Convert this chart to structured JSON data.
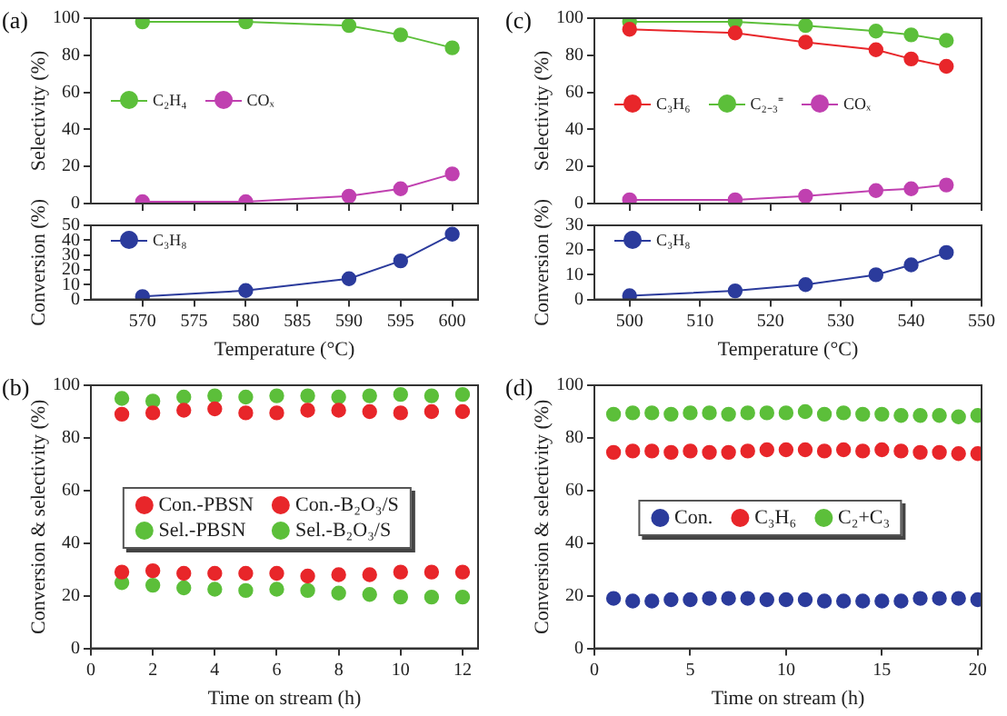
{
  "chart_data": [
    {
      "type": "line",
      "title": "(a)",
      "ylabel": "Selectivity (%)",
      "x": [
        570,
        580,
        590,
        595,
        600
      ],
      "xlim": [
        565,
        602.5
      ],
      "xticks": [
        570,
        575,
        580,
        585,
        590,
        595,
        600
      ],
      "ylim": [
        0,
        100
      ],
      "yticks": [
        0,
        20,
        40,
        60,
        80,
        100
      ],
      "tick_labels": "y",
      "marker": "circle",
      "legend": "left",
      "grid": false,
      "series": [
        {
          "name": "C₂H₄",
          "color": "#5cbf3a",
          "values": [
            98,
            98,
            96,
            91,
            84
          ]
        },
        {
          "name": "COₓ",
          "color": "#c040b0",
          "values": [
            1,
            1,
            4,
            8,
            16
          ]
        }
      ]
    },
    {
      "type": "line",
      "ylabel": "Conversion (%)",
      "xlabel": "Temperature (°C)",
      "x": [
        570,
        580,
        590,
        595,
        600
      ],
      "xlim": [
        565,
        602.5
      ],
      "xticks": [
        570,
        575,
        580,
        585,
        590,
        595,
        600
      ],
      "ylim": [
        0,
        50
      ],
      "yticks": [
        0,
        10,
        20,
        30,
        40,
        50
      ],
      "marker": "circle",
      "legend": "top left",
      "grid": false,
      "series": [
        {
          "name": "C₃H₈",
          "color": "#2b3b9c",
          "values": [
            2,
            6,
            14,
            26,
            44
          ]
        }
      ]
    },
    {
      "type": "line",
      "title": "(c)",
      "ylabel": "Selectivity (%)",
      "x": [
        500,
        515,
        525,
        535,
        540,
        545
      ],
      "xlim": [
        495,
        550
      ],
      "xticks": [
        500,
        510,
        520,
        530,
        540,
        550
      ],
      "ylim": [
        0,
        100
      ],
      "yticks": [
        0,
        20,
        40,
        60,
        80,
        100
      ],
      "tick_labels": "y",
      "marker": "circle",
      "legend": "left",
      "grid": false,
      "series": [
        {
          "name": "C₃H₆",
          "color": "#e8262a",
          "values": [
            94,
            92,
            87,
            83,
            78,
            74
          ]
        },
        {
          "name": "C₂₋₃⁼",
          "color": "#5cbf3a",
          "values": [
            98,
            98,
            96,
            93,
            91,
            88
          ]
        },
        {
          "name": "COₓ",
          "color": "#c040b0",
          "values": [
            2,
            2,
            4,
            7,
            8,
            10
          ]
        }
      ]
    },
    {
      "type": "line",
      "ylabel": "Conversion (%)",
      "xlabel": "Temperature (°C)",
      "x": [
        500,
        515,
        525,
        535,
        540,
        545
      ],
      "xlim": [
        495,
        550
      ],
      "xticks": [
        500,
        510,
        520,
        530,
        540,
        550
      ],
      "ylim": [
        0,
        30
      ],
      "yticks": [
        0,
        10,
        20,
        30
      ],
      "marker": "circle",
      "legend": "top left",
      "grid": false,
      "series": [
        {
          "name": "C₃H₈",
          "color": "#2b3b9c",
          "values": [
            1.5,
            3.5,
            6,
            10,
            14,
            19
          ]
        }
      ]
    },
    {
      "type": "scatter",
      "title": "(b)",
      "xlabel": "Time on stream (h)",
      "ylabel": "Conversion & selectivity (%)",
      "x": [
        1,
        2,
        3,
        4,
        5,
        6,
        7,
        8,
        9,
        10,
        11,
        12
      ],
      "xlim": [
        0,
        12.5
      ],
      "xticks": [
        0,
        2,
        4,
        6,
        8,
        10,
        12
      ],
      "ylim": [
        0,
        100
      ],
      "yticks": [
        0,
        20,
        40,
        60,
        80,
        100
      ],
      "marker": "circle",
      "legend": "center",
      "grid": false,
      "series": [
        {
          "name": "Con.-PBSN",
          "color": "#e8262a",
          "values": [
            29,
            29.5,
            28.5,
            28.5,
            28.5,
            28.5,
            27.5,
            28,
            28,
            29,
            29,
            29
          ]
        },
        {
          "name": "Con.-B₂O₃/S",
          "color": "#e8262a",
          "values": [
            89,
            89.5,
            90.5,
            91,
            89.5,
            89.5,
            90.5,
            90.5,
            90,
            89.5,
            90,
            90
          ]
        },
        {
          "name": "Sel.-PBSN",
          "color": "#5cbf3a",
          "values": [
            25,
            24,
            23,
            22.5,
            22,
            22.5,
            22,
            21,
            20.5,
            19.5,
            19.5,
            19.5
          ]
        },
        {
          "name": "Sel.-B₂O₃/S",
          "color": "#5cbf3a",
          "values": [
            95,
            94,
            95.5,
            96,
            95.5,
            96,
            96,
            95.5,
            96,
            96.5,
            96,
            96.5
          ]
        }
      ]
    },
    {
      "type": "scatter",
      "title": "(d)",
      "xlabel": "Time on stream (h)",
      "ylabel": "Conversion & selectivity (%)",
      "x": [
        1,
        2,
        3,
        4,
        5,
        6,
        7,
        8,
        9,
        10,
        11,
        12,
        13,
        14,
        15,
        16,
        17,
        18,
        19,
        20
      ],
      "xlim": [
        0,
        20.2
      ],
      "xticks": [
        0,
        5,
        10,
        15,
        20
      ],
      "ylim": [
        0,
        100
      ],
      "yticks": [
        0,
        20,
        40,
        60,
        80,
        100
      ],
      "marker": "circle",
      "legend": "center",
      "grid": false,
      "series": [
        {
          "name": "Con.",
          "color": "#2b3b9c",
          "values": [
            19,
            18,
            18,
            18.5,
            18.5,
            19,
            19,
            19,
            18.5,
            18.5,
            18.5,
            18,
            18,
            18,
            18,
            18,
            19,
            19,
            19,
            18.5
          ]
        },
        {
          "name": "C₃H₆",
          "color": "#e8262a",
          "values": [
            74.5,
            75,
            75,
            74.5,
            75,
            74.5,
            74.5,
            75,
            75.5,
            75.5,
            75.5,
            75,
            75.5,
            75,
            75.5,
            75,
            74.5,
            74.5,
            74,
            74
          ]
        },
        {
          "name": "C₂+C₃",
          "color": "#5cbf3a",
          "values": [
            89,
            89.5,
            89.5,
            89,
            89.5,
            89.5,
            89,
            89.5,
            89.5,
            89.5,
            90,
            89,
            89.5,
            89,
            89,
            88.5,
            88.5,
            88.5,
            88,
            88.5
          ]
        }
      ]
    }
  ]
}
